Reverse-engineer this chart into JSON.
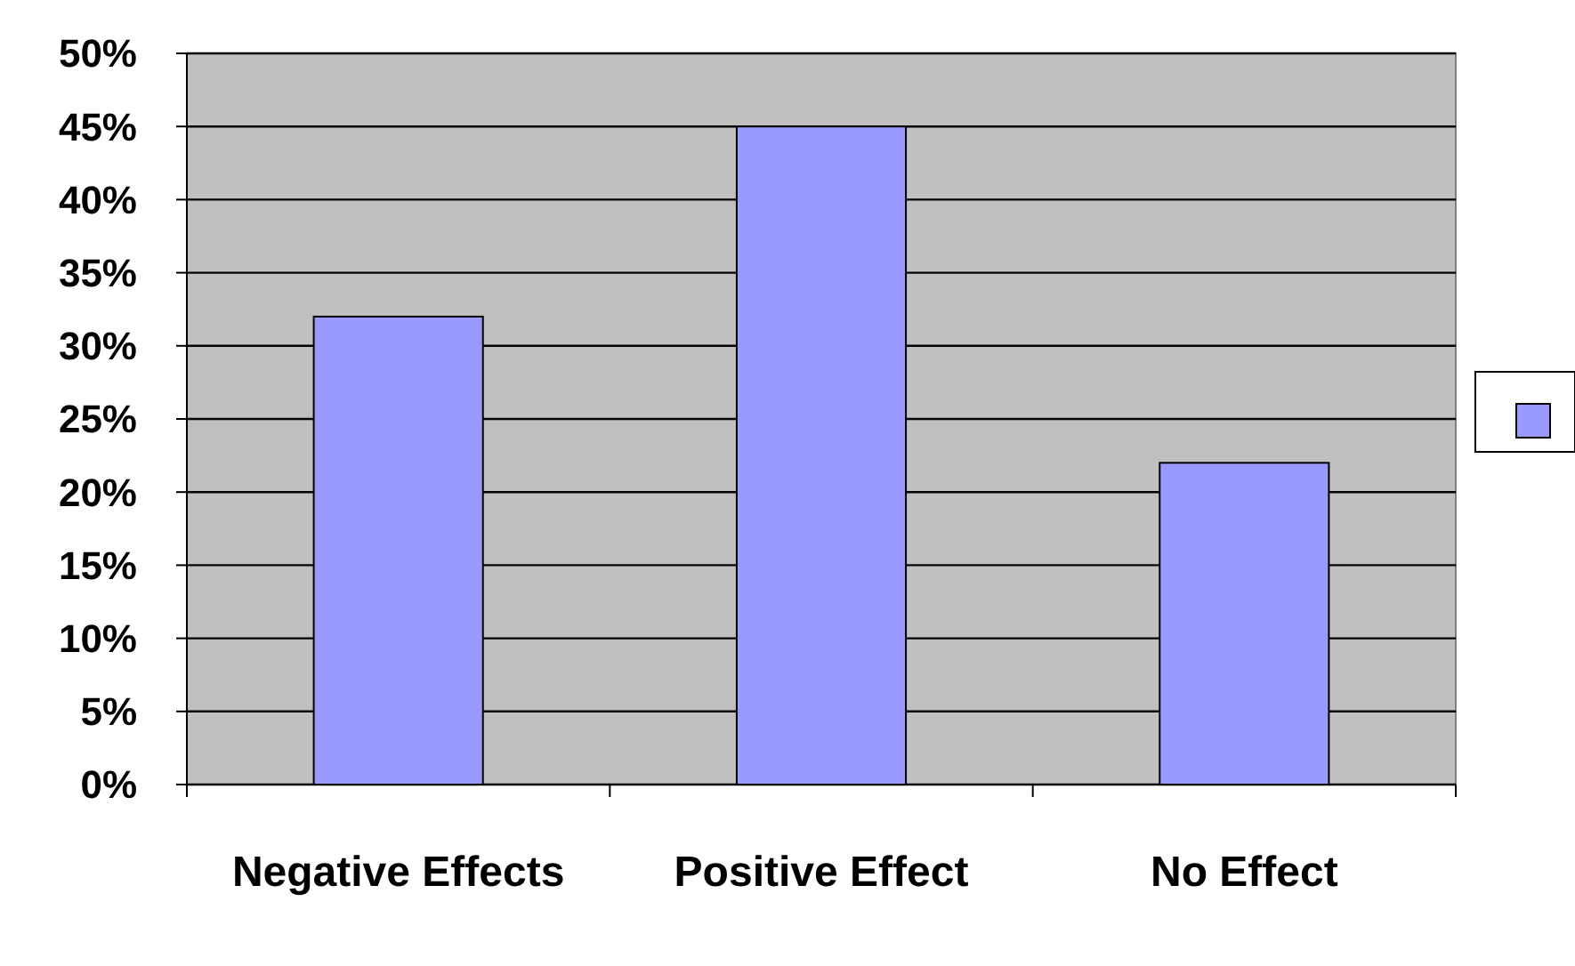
{
  "chart_data": {
    "type": "bar",
    "categories": [
      "Negative Effects",
      "Positive Effect",
      "No Effect"
    ],
    "series": [
      {
        "color": "#9999ff",
        "values": [
          32,
          45,
          22
        ]
      }
    ],
    "ylim": [
      0,
      50
    ],
    "yticks": [
      {
        "value": 0,
        "label": "0%"
      },
      {
        "value": 5,
        "label": "5%"
      },
      {
        "value": 10,
        "label": "10%"
      },
      {
        "value": 15,
        "label": "15%"
      },
      {
        "value": 20,
        "label": "20%"
      },
      {
        "value": 25,
        "label": "25%"
      },
      {
        "value": 30,
        "label": "30%"
      },
      {
        "value": 35,
        "label": "35%"
      },
      {
        "value": 40,
        "label": "40%"
      },
      {
        "value": 45,
        "label": "45%"
      },
      {
        "value": 50,
        "label": "50%"
      }
    ],
    "grid": "y"
  }
}
